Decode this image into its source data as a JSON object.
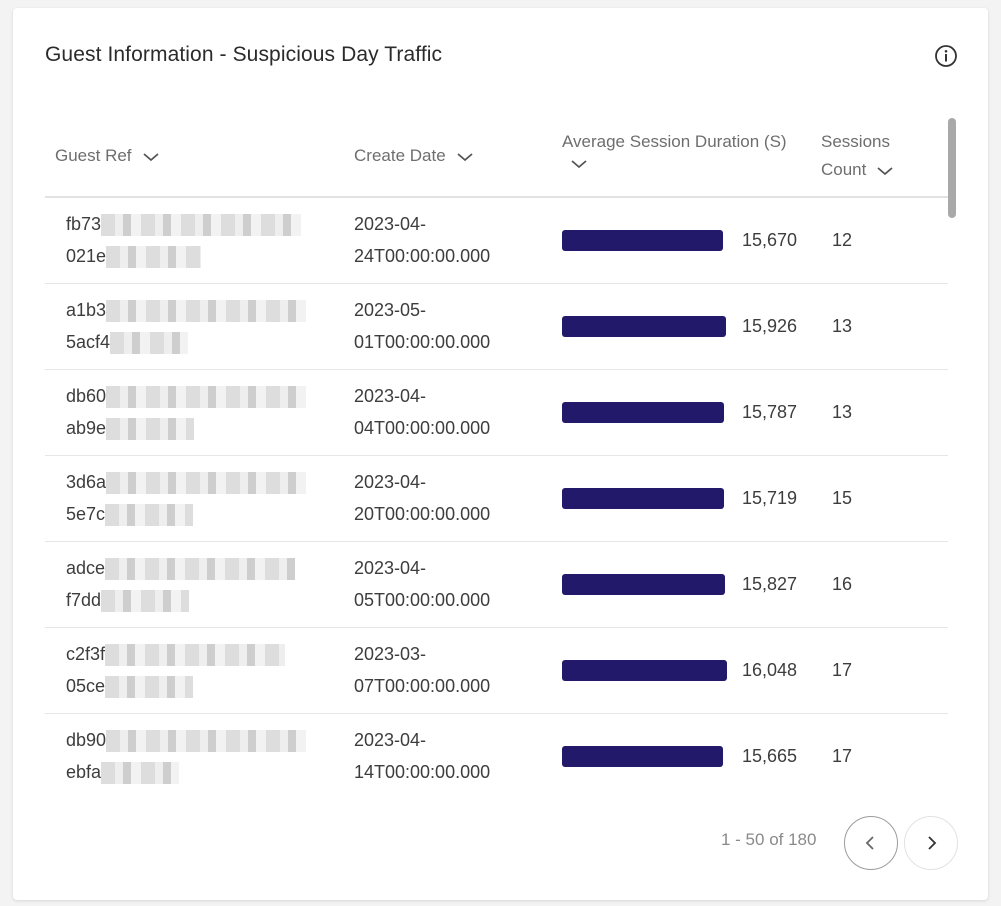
{
  "card": {
    "title": "Guest Information - Suspicious Day Traffic"
  },
  "table": {
    "columns": {
      "guest_ref": "Guest Ref",
      "create_date": "Create Date",
      "avg_session": "Average Session Duration (S)",
      "sessions_count_line1": "Sessions",
      "sessions_count_line2": "Count"
    },
    "bar_color": "#23196b",
    "bar_max": 16048,
    "rows": [
      {
        "guest_prefix_1": "fb73",
        "guest_prefix_2": "021e",
        "date_line1": "2023-04-",
        "date_line2": "24T00:00:00.000",
        "avg": 15670,
        "avg_label": "15,670",
        "sessions": "12"
      },
      {
        "guest_prefix_1": "a1b3",
        "guest_prefix_2": "5acf4",
        "date_line1": "2023-05-",
        "date_line2": "01T00:00:00.000",
        "avg": 15926,
        "avg_label": "15,926",
        "sessions": "13"
      },
      {
        "guest_prefix_1": "db60",
        "guest_prefix_2": "ab9e",
        "date_line1": "2023-04-",
        "date_line2": "04T00:00:00.000",
        "avg": 15787,
        "avg_label": "15,787",
        "sessions": "13"
      },
      {
        "guest_prefix_1": "3d6a",
        "guest_prefix_2": "5e7c",
        "date_line1": "2023-04-",
        "date_line2": "20T00:00:00.000",
        "avg": 15719,
        "avg_label": "15,719",
        "sessions": "15"
      },
      {
        "guest_prefix_1": "adce",
        "guest_prefix_2": "f7dd",
        "date_line1": "2023-04-",
        "date_line2": "05T00:00:00.000",
        "avg": 15827,
        "avg_label": "15,827",
        "sessions": "16"
      },
      {
        "guest_prefix_1": "c2f3f",
        "guest_prefix_2": "05ce",
        "date_line1": "2023-03-",
        "date_line2": "07T00:00:00.000",
        "avg": 16048,
        "avg_label": "16,048",
        "sessions": "17"
      },
      {
        "guest_prefix_1": "db90",
        "guest_prefix_2": "ebfa",
        "date_line1": "2023-04-",
        "date_line2": "14T00:00:00.000",
        "avg": 15665,
        "avg_label": "15,665",
        "sessions": "17"
      }
    ]
  },
  "pagination": {
    "range_text": "1 - 50 of 180"
  },
  "icons": {
    "info": "info-icon",
    "sort": "chevron-down-icon",
    "prev": "chevron-left-icon",
    "next": "chevron-right-icon"
  }
}
